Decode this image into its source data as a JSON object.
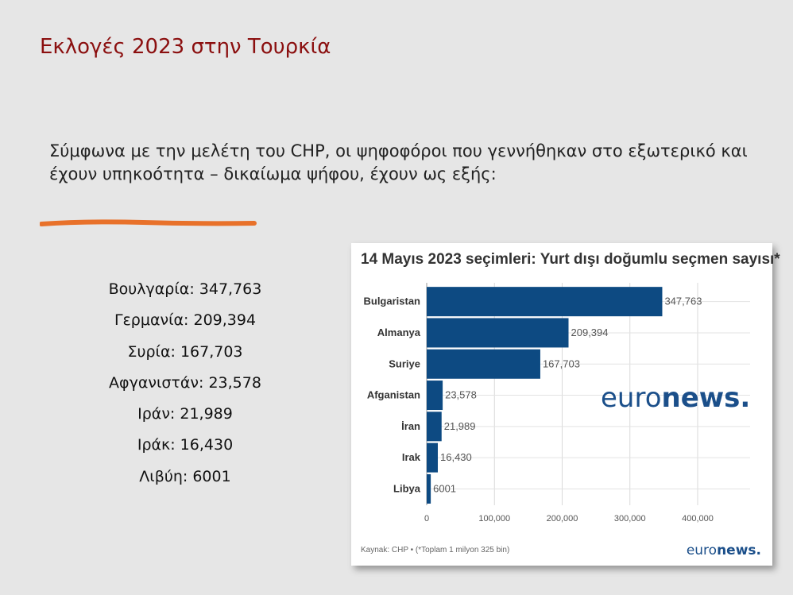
{
  "slide": {
    "title": "Εκλογές 2023 στην Τουρκία",
    "intro": "Σύμφωνα με την μελέτη του CHP, οι ψηφοφόροι που γεννήθηκαν στο εξωτερικό και έχουν υπηκοότητα – δικαίωμα ψήφου, έχουν ως εξής:",
    "list": [
      "Βουλγαρία: 347,763",
      "Γερμανία: 209,394",
      "Συρία: 167,703",
      "Αφγανιστάν: 23,578",
      "Ιράν: 21,989",
      "Ιράκ: 16,430",
      "Λιβύη: 6001"
    ],
    "accent_color": "#8b0f0f",
    "stroke_color": "#e8712a"
  },
  "chart_data": {
    "type": "bar",
    "orientation": "horizontal",
    "title": "14 Mayıs 2023 seçimleri: Yurt dışı doğumlu seçmen sayısı*",
    "categories": [
      "Bulgaristan",
      "Almanya",
      "Suriye",
      "Afganistan",
      "İran",
      "Irak",
      "Libya"
    ],
    "values": [
      347763,
      209394,
      167703,
      23578,
      21989,
      16430,
      6001
    ],
    "value_labels": [
      "347,763",
      "209,394",
      "167,703",
      "23,578",
      "21,989",
      "16,430",
      "6001"
    ],
    "xticks": [
      "0",
      "100,000",
      "200,000",
      "300,000",
      "400,000"
    ],
    "xlim": [
      0,
      480000
    ],
    "grid": true,
    "bar_color": "#0d4a82",
    "watermark": "euronews.",
    "source": "Kaynak: CHP • (*Toplam 1 milyon 325 bin)",
    "footer_logo": "euronews."
  }
}
